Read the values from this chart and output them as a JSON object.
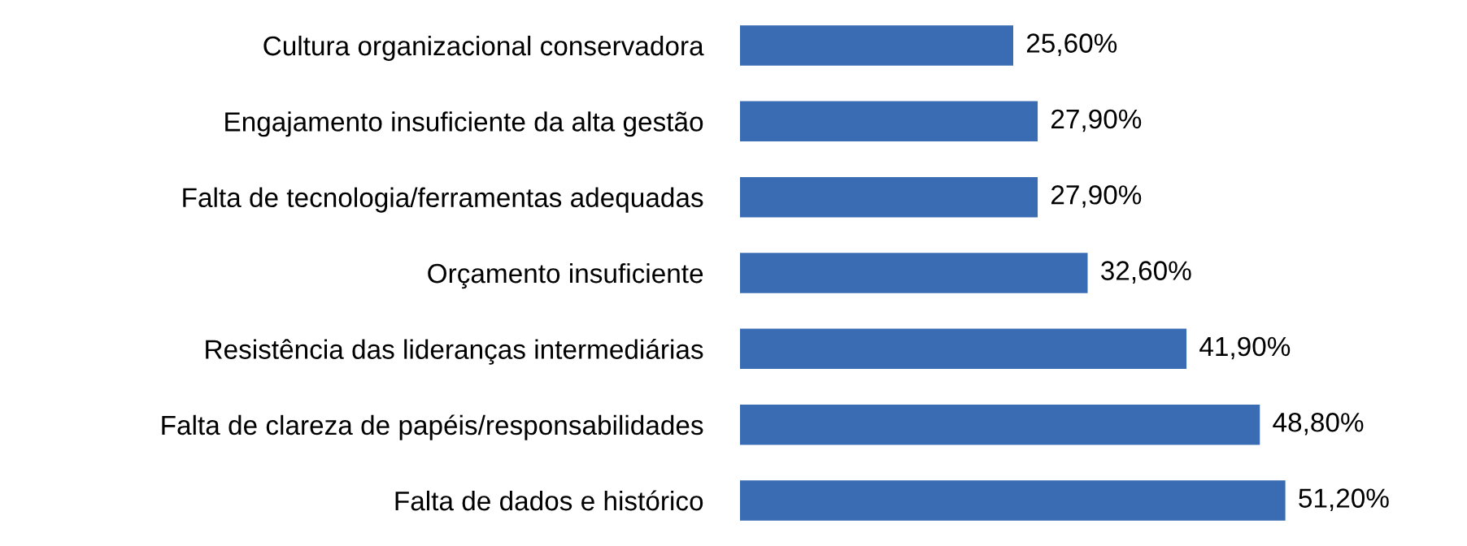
{
  "chart_data": {
    "type": "bar",
    "orientation": "horizontal",
    "categories": [
      "Cultura organizacional conservadora",
      "Engajamento insuficiente da alta gestão",
      "Falta de tecnologia/ferramentas adequadas",
      "Orçamento insuficiente",
      "Resistência das lideranças intermediárias",
      "Falta de clareza de papéis/responsabilidades",
      "Falta de dados e histórico"
    ],
    "values": [
      25.6,
      27.9,
      27.9,
      32.6,
      41.9,
      48.8,
      51.2
    ],
    "value_labels": [
      "25,60%",
      "27,90%",
      "27,90%",
      "32,60%",
      "41,90%",
      "48,80%",
      "51,20%"
    ],
    "color": "#3a6cb4",
    "grid": false,
    "legend": false
  }
}
